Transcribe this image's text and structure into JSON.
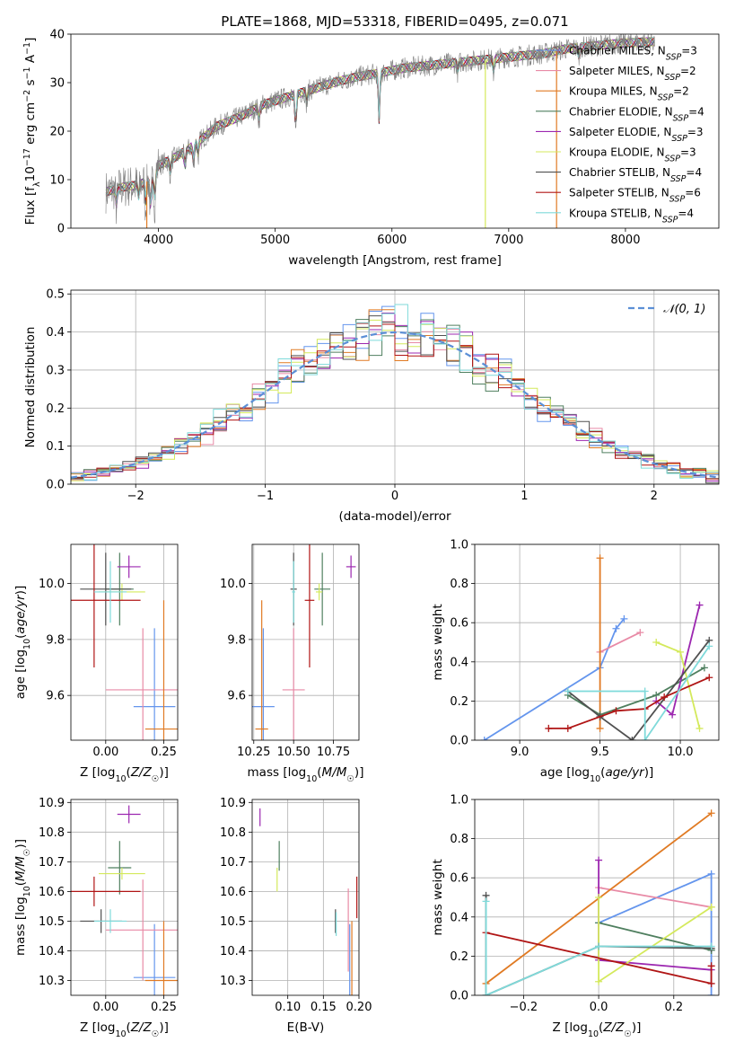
{
  "figure": {
    "title": "PLATE=1868, MJD=53318, FIBERID=0495, z=0.071"
  },
  "colors": {
    "Chabrier MILES": "#6495ed",
    "Salpeter MILES": "#e88aa6",
    "Kroupa MILES": "#e07a23",
    "Chabrier ELODIE": "#4f7f5f",
    "Salpeter ELODIE": "#9c27b0",
    "Kroupa ELODIE": "#d4e95c",
    "Chabrier STELIB": "#505050",
    "Salpeter STELIB": "#b01515",
    "Kroupa STELIB": "#7fdada",
    "gaussian": "#5b8fd6",
    "grid": "#b0b0b0"
  },
  "models": [
    {
      "name": "Chabrier MILES",
      "nssp": "3"
    },
    {
      "name": "Salpeter MILES",
      "nssp": "2"
    },
    {
      "name": "Kroupa MILES",
      "nssp": "2"
    },
    {
      "name": "Chabrier ELODIE",
      "nssp": "4"
    },
    {
      "name": "Salpeter ELODIE",
      "nssp": "3"
    },
    {
      "name": "Kroupa ELODIE",
      "nssp": "3"
    },
    {
      "name": "Chabrier STELIB",
      "nssp": "4"
    },
    {
      "name": "Salpeter STELIB",
      "nssp": "6"
    },
    {
      "name": "Kroupa STELIB",
      "nssp": "4"
    }
  ],
  "nssp_label": "=",
  "chart_data": [
    {
      "id": "spectrum",
      "type": "line",
      "xlabel": "wavelength [Angstrom, rest frame]",
      "ylabel": "Flux [f_λ 10^-17 erg cm^-2 s^-1 A^-1]",
      "xlim": [
        3250,
        8800
      ],
      "ylim": [
        0,
        40
      ],
      "xticks": [
        4000,
        5000,
        6000,
        7000,
        8000
      ],
      "yticks": [
        0,
        10,
        20,
        30,
        40
      ],
      "continuum": [
        [
          3550,
          7.5
        ],
        [
          3700,
          8.5
        ],
        [
          3800,
          8.8
        ],
        [
          3950,
          10
        ],
        [
          4000,
          13
        ],
        [
          4100,
          14
        ],
        [
          4300,
          17
        ],
        [
          4500,
          21
        ],
        [
          4700,
          23
        ],
        [
          4900,
          25.5
        ],
        [
          5100,
          27
        ],
        [
          5300,
          28.5
        ],
        [
          5500,
          30
        ],
        [
          5700,
          31.2
        ],
        [
          5900,
          32
        ],
        [
          6100,
          33
        ],
        [
          6300,
          33.5
        ],
        [
          6500,
          34
        ],
        [
          6700,
          34.5
        ],
        [
          6900,
          35
        ],
        [
          7100,
          35.5
        ],
        [
          7300,
          36
        ],
        [
          7500,
          37
        ],
        [
          7700,
          37.5
        ],
        [
          7900,
          38
        ],
        [
          8100,
          38.3
        ],
        [
          8300,
          38.5
        ]
      ],
      "features": [
        [
          3640,
          -4
        ],
        [
          3830,
          -3
        ],
        [
          3890,
          -5
        ],
        [
          3933,
          -7
        ],
        [
          3968,
          -6
        ],
        [
          4101,
          -3
        ],
        [
          4227,
          -4
        ],
        [
          4300,
          -4
        ],
        [
          4340,
          -3
        ],
        [
          4861,
          -3
        ],
        [
          5175,
          -8
        ],
        [
          5270,
          -3
        ],
        [
          5890,
          -12
        ],
        [
          6563,
          -2
        ],
        [
          6870,
          -3
        ],
        [
          7600,
          -2
        ]
      ],
      "obs_end": 8250,
      "spikes": [
        {
          "model": "Kroupa ELODIE",
          "x": 6800,
          "to": 0
        },
        {
          "model": "Kroupa MILES",
          "x": 7410,
          "to": 0
        },
        {
          "model": "Kroupa MILES",
          "x": 3900,
          "to": 0
        }
      ]
    },
    {
      "id": "residuals",
      "type": "histogram",
      "xlabel": "(data-model)/error",
      "ylabel": "Normed distribution",
      "xlim": [
        -2.5,
        2.5
      ],
      "ylim": [
        0,
        0.51
      ],
      "xticks": [
        -2,
        -1,
        0,
        1,
        2
      ],
      "yticks": [
        0.0,
        0.1,
        0.2,
        0.3,
        0.4,
        0.5
      ],
      "bin_width": 0.1,
      "gaussian_label": "𝒩(0, 1)"
    },
    {
      "id": "age_vs_Z",
      "type": "scatter",
      "xlabel": "Z [log10(Z/Z☉)]",
      "ylabel": "age [log10(age/yr)]",
      "xlim": [
        -0.15,
        0.31
      ],
      "ylim": [
        9.44,
        10.14
      ],
      "xticks": [
        0.0,
        0.25
      ],
      "yticks": [
        9.6,
        9.8,
        10.0
      ],
      "points": [
        {
          "model": "Chabrier MILES",
          "x": 0.21,
          "xerr": 0.09,
          "y": 9.56,
          "yerr": 0.28
        },
        {
          "model": "Salpeter MILES",
          "x": 0.16,
          "xerr": 0.16,
          "y": 9.62,
          "yerr": 0.22
        },
        {
          "model": "Kroupa MILES",
          "x": 0.25,
          "xerr": 0.08,
          "y": 9.48,
          "yerr": 0.46
        },
        {
          "model": "Chabrier ELODIE",
          "x": 0.06,
          "xerr": 0.06,
          "y": 9.98,
          "yerr": 0.13
        },
        {
          "model": "Salpeter ELODIE",
          "x": 0.1,
          "xerr": 0.05,
          "y": 10.06,
          "yerr": 0.04
        },
        {
          "model": "Kroupa ELODIE",
          "x": 0.07,
          "xerr": 0.1,
          "y": 9.97,
          "yerr": 0.03
        },
        {
          "model": "Chabrier STELIB",
          "x": 0.0,
          "xerr": 0.11,
          "y": 9.98,
          "yerr": 0.13
        },
        {
          "model": "Salpeter STELIB",
          "x": -0.05,
          "xerr": 0.2,
          "y": 9.94,
          "yerr": 0.24
        },
        {
          "model": "Kroupa STELIB",
          "x": 0.02,
          "xerr": 0.07,
          "y": 9.97,
          "yerr": 0.11
        }
      ]
    },
    {
      "id": "age_vs_mass",
      "type": "scatter",
      "xlabel": "mass [log10(M/M☉)]",
      "ylabel": "",
      "xlim": [
        10.24,
        10.91
      ],
      "ylim": [
        9.44,
        10.14
      ],
      "xticks": [
        10.25,
        10.5,
        10.75
      ],
      "yticks": [
        9.6,
        9.8,
        10.0
      ],
      "points": [
        {
          "model": "Chabrier MILES",
          "x": 10.31,
          "xerr": 0.07,
          "y": 9.56,
          "yerr": 0.28
        },
        {
          "model": "Salpeter MILES",
          "x": 10.5,
          "xerr": 0.07,
          "y": 9.62,
          "yerr": 0.22
        },
        {
          "model": "Kroupa MILES",
          "x": 10.3,
          "xerr": 0.04,
          "y": 9.48,
          "yerr": 0.46
        },
        {
          "model": "Chabrier ELODIE",
          "x": 10.68,
          "xerr": 0.05,
          "y": 9.98,
          "yerr": 0.13
        },
        {
          "model": "Salpeter ELODIE",
          "x": 10.86,
          "xerr": 0.03,
          "y": 10.06,
          "yerr": 0.04
        },
        {
          "model": "Kroupa ELODIE",
          "x": 10.66,
          "xerr": 0.02,
          "y": 9.97,
          "yerr": 0.03
        },
        {
          "model": "Chabrier STELIB",
          "x": 10.5,
          "xerr": 0.02,
          "y": 9.98,
          "yerr": 0.13
        },
        {
          "model": "Salpeter STELIB",
          "x": 10.6,
          "xerr": 0.03,
          "y": 9.94,
          "yerr": 0.24
        },
        {
          "model": "Kroupa STELIB",
          "x": 10.5,
          "xerr": 0.01,
          "y": 9.97,
          "yerr": 0.11
        }
      ]
    },
    {
      "id": "weight_vs_age",
      "type": "line",
      "xlabel": "age [log10(age/yr)]",
      "ylabel": "mass weight",
      "xlim": [
        8.72,
        10.24
      ],
      "ylim": [
        0,
        1
      ],
      "xticks": [
        9.0,
        9.5,
        10.0
      ],
      "yticks": [
        0.0,
        0.2,
        0.4,
        0.6,
        0.8,
        1.0
      ],
      "series": [
        {
          "model": "Chabrier MILES",
          "x": [
            8.78,
            9.5,
            9.6,
            9.65
          ],
          "y": [
            0.0,
            0.37,
            0.57,
            0.62
          ]
        },
        {
          "model": "Salpeter MILES",
          "x": [
            9.5,
            9.75
          ],
          "y": [
            0.45,
            0.55
          ]
        },
        {
          "model": "Kroupa MILES",
          "x": [
            9.5,
            9.5
          ],
          "y": [
            0.06,
            0.93
          ]
        },
        {
          "model": "Chabrier ELODIE",
          "x": [
            9.3,
            9.5,
            9.85,
            10.15
          ],
          "y": [
            0.23,
            0.13,
            0.23,
            0.37
          ]
        },
        {
          "model": "Salpeter ELODIE",
          "x": [
            9.85,
            9.95,
            10.12
          ],
          "y": [
            0.2,
            0.13,
            0.69
          ]
        },
        {
          "model": "Kroupa ELODIE",
          "x": [
            9.85,
            10.0,
            10.12
          ],
          "y": [
            0.5,
            0.45,
            0.06
          ]
        },
        {
          "model": "Chabrier STELIB",
          "x": [
            9.3,
            9.5,
            9.7,
            10.18
          ],
          "y": [
            0.25,
            0.12,
            0.0,
            0.51
          ]
        },
        {
          "model": "Salpeter STELIB",
          "x": [
            9.18,
            9.3,
            9.6,
            9.78,
            9.9,
            10.18
          ],
          "y": [
            0.06,
            0.06,
            0.15,
            0.16,
            0.22,
            0.32
          ]
        },
        {
          "model": "Kroupa STELIB",
          "x": [
            9.3,
            9.78,
            9.78,
            10.18
          ],
          "y": [
            0.25,
            0.25,
            0.0,
            0.48
          ]
        }
      ]
    },
    {
      "id": "mass_vs_Z",
      "type": "scatter",
      "xlabel": "Z [log10(Z/Z☉)]",
      "ylabel": "mass [log10(M/M☉)]",
      "xlim": [
        -0.15,
        0.31
      ],
      "ylim": [
        10.25,
        10.91
      ],
      "xticks": [
        0.0,
        0.25
      ],
      "yticks": [
        10.3,
        10.4,
        10.5,
        10.6,
        10.7,
        10.8,
        10.9
      ],
      "points": [
        {
          "model": "Chabrier MILES",
          "x": 0.21,
          "xerr": 0.09,
          "y": 10.31,
          "yerr": 0.18
        },
        {
          "model": "Salpeter MILES",
          "x": 0.16,
          "xerr": 0.16,
          "y": 10.47,
          "yerr": 0.17
        },
        {
          "model": "Kroupa MILES",
          "x": 0.25,
          "xerr": 0.08,
          "y": 10.3,
          "yerr": 0.2
        },
        {
          "model": "Chabrier ELODIE",
          "x": 0.06,
          "xerr": 0.05,
          "y": 10.68,
          "yerr": 0.09
        },
        {
          "model": "Salpeter ELODIE",
          "x": 0.1,
          "xerr": 0.05,
          "y": 10.86,
          "yerr": 0.03
        },
        {
          "model": "Kroupa ELODIE",
          "x": 0.07,
          "xerr": 0.1,
          "y": 10.66,
          "yerr": 0.02
        },
        {
          "model": "Chabrier STELIB",
          "x": -0.02,
          "xerr": 0.09,
          "y": 10.5,
          "yerr": 0.04
        },
        {
          "model": "Salpeter STELIB",
          "x": -0.05,
          "xerr": 0.2,
          "y": 10.6,
          "yerr": 0.05
        },
        {
          "model": "Kroupa STELIB",
          "x": 0.02,
          "xerr": 0.07,
          "y": 10.5,
          "yerr": 0.04
        }
      ]
    },
    {
      "id": "mass_vs_ebv",
      "type": "scatter",
      "xlabel": "E(B-V)",
      "ylabel": "",
      "xlim": [
        0.05,
        0.2
      ],
      "ylim": [
        10.25,
        10.91
      ],
      "xticks": [
        0.1,
        0.15,
        0.2
      ],
      "yticks": [
        10.3,
        10.4,
        10.5,
        10.6,
        10.7,
        10.8,
        10.9
      ],
      "points": [
        {
          "model": "Chabrier MILES",
          "x": 0.187,
          "y": 10.31,
          "yerr": 0.18
        },
        {
          "model": "Salpeter MILES",
          "x": 0.185,
          "y": 10.47,
          "yerr": 0.14
        },
        {
          "model": "Kroupa MILES",
          "x": 0.19,
          "y": 10.3,
          "yerr": 0.2
        },
        {
          "model": "Chabrier ELODIE",
          "x": 0.088,
          "y": 10.72,
          "yerr": 0.05
        },
        {
          "model": "Salpeter ELODIE",
          "x": 0.061,
          "y": 10.85,
          "yerr": 0.03
        },
        {
          "model": "Kroupa ELODIE",
          "x": 0.085,
          "y": 10.64,
          "yerr": 0.04
        },
        {
          "model": "Chabrier STELIB",
          "x": 0.167,
          "y": 10.5,
          "yerr": 0.04
        },
        {
          "model": "Salpeter STELIB",
          "x": 0.197,
          "y": 10.58,
          "yerr": 0.07
        },
        {
          "model": "Kroupa STELIB",
          "x": 0.168,
          "y": 10.49,
          "yerr": 0.04
        }
      ]
    },
    {
      "id": "weight_vs_Z",
      "type": "line",
      "xlabel": "Z [log10(Z/Z☉)]",
      "ylabel": "mass weight",
      "xlim": [
        -0.33,
        0.32
      ],
      "ylim": [
        0,
        1
      ],
      "xticks": [
        -0.2,
        0.0,
        0.2
      ],
      "yticks": [
        0.0,
        0.2,
        0.4,
        0.6,
        0.8,
        1.0
      ],
      "series": [
        {
          "model": "Chabrier MILES",
          "x": [
            0.0,
            0.3,
            0.3
          ],
          "y": [
            0.37,
            0.62,
            0.0
          ]
        },
        {
          "model": "Salpeter MILES",
          "x": [
            0.0,
            0.3
          ],
          "y": [
            0.55,
            0.45
          ]
        },
        {
          "model": "Kroupa MILES",
          "x": [
            -0.3,
            0.3
          ],
          "y": [
            0.06,
            0.93
          ]
        },
        {
          "model": "Chabrier ELODIE",
          "x": [
            0.0,
            0.3,
            0.3
          ],
          "y": [
            0.37,
            0.23,
            0.23
          ]
        },
        {
          "model": "Salpeter ELODIE",
          "x": [
            0.0,
            0.0,
            0.3
          ],
          "y": [
            0.69,
            0.18,
            0.13
          ]
        },
        {
          "model": "Kroupa ELODIE",
          "x": [
            0.0,
            0.0,
            0.3,
            0.3
          ],
          "y": [
            0.5,
            0.07,
            0.45,
            0.45
          ]
        },
        {
          "model": "Chabrier STELIB",
          "x": [
            -0.3,
            -0.3,
            0.0,
            0.3
          ],
          "y": [
            0.51,
            0.0,
            0.25,
            0.24
          ]
        },
        {
          "model": "Salpeter STELIB",
          "x": [
            -0.3,
            0.3,
            0.3
          ],
          "y": [
            0.32,
            0.06,
            0.15
          ]
        },
        {
          "model": "Kroupa STELIB",
          "x": [
            -0.3,
            -0.3,
            0.0,
            0.3
          ],
          "y": [
            0.48,
            0.0,
            0.25,
            0.25
          ]
        }
      ]
    }
  ]
}
